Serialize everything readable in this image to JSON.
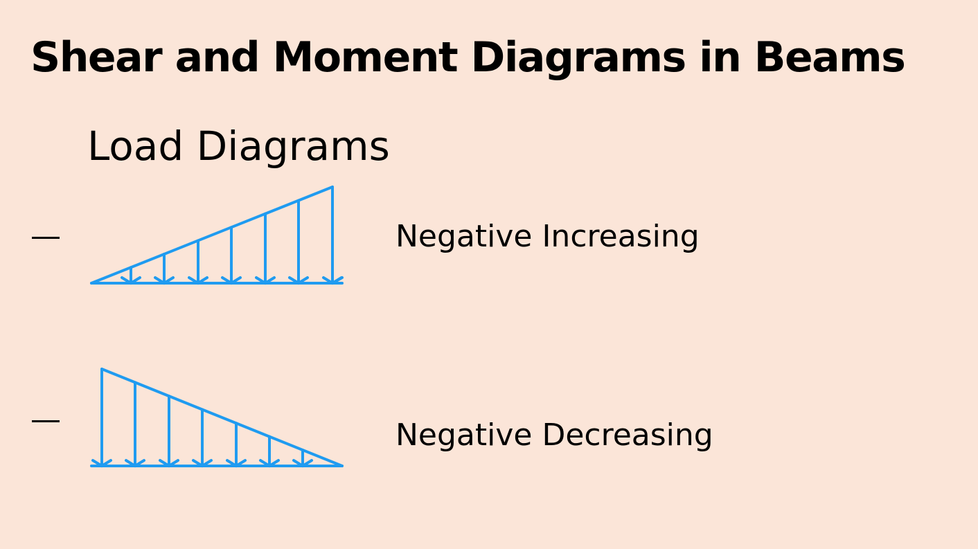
{
  "slide": {
    "title": "Shear and Moment Diagrams in Beams",
    "section_heading": "Load Diagrams"
  },
  "diagrams": [
    {
      "bullet": "dash",
      "label": "Negative Increasing",
      "shape": "increasing-triangular-load"
    },
    {
      "bullet": "dash",
      "label": "Negative Decreasing",
      "shape": "decreasing-triangular-load"
    }
  ],
  "colors": {
    "background": "#fbe5d8",
    "load_arrows": "#1f9bf0",
    "text": "#000000"
  }
}
